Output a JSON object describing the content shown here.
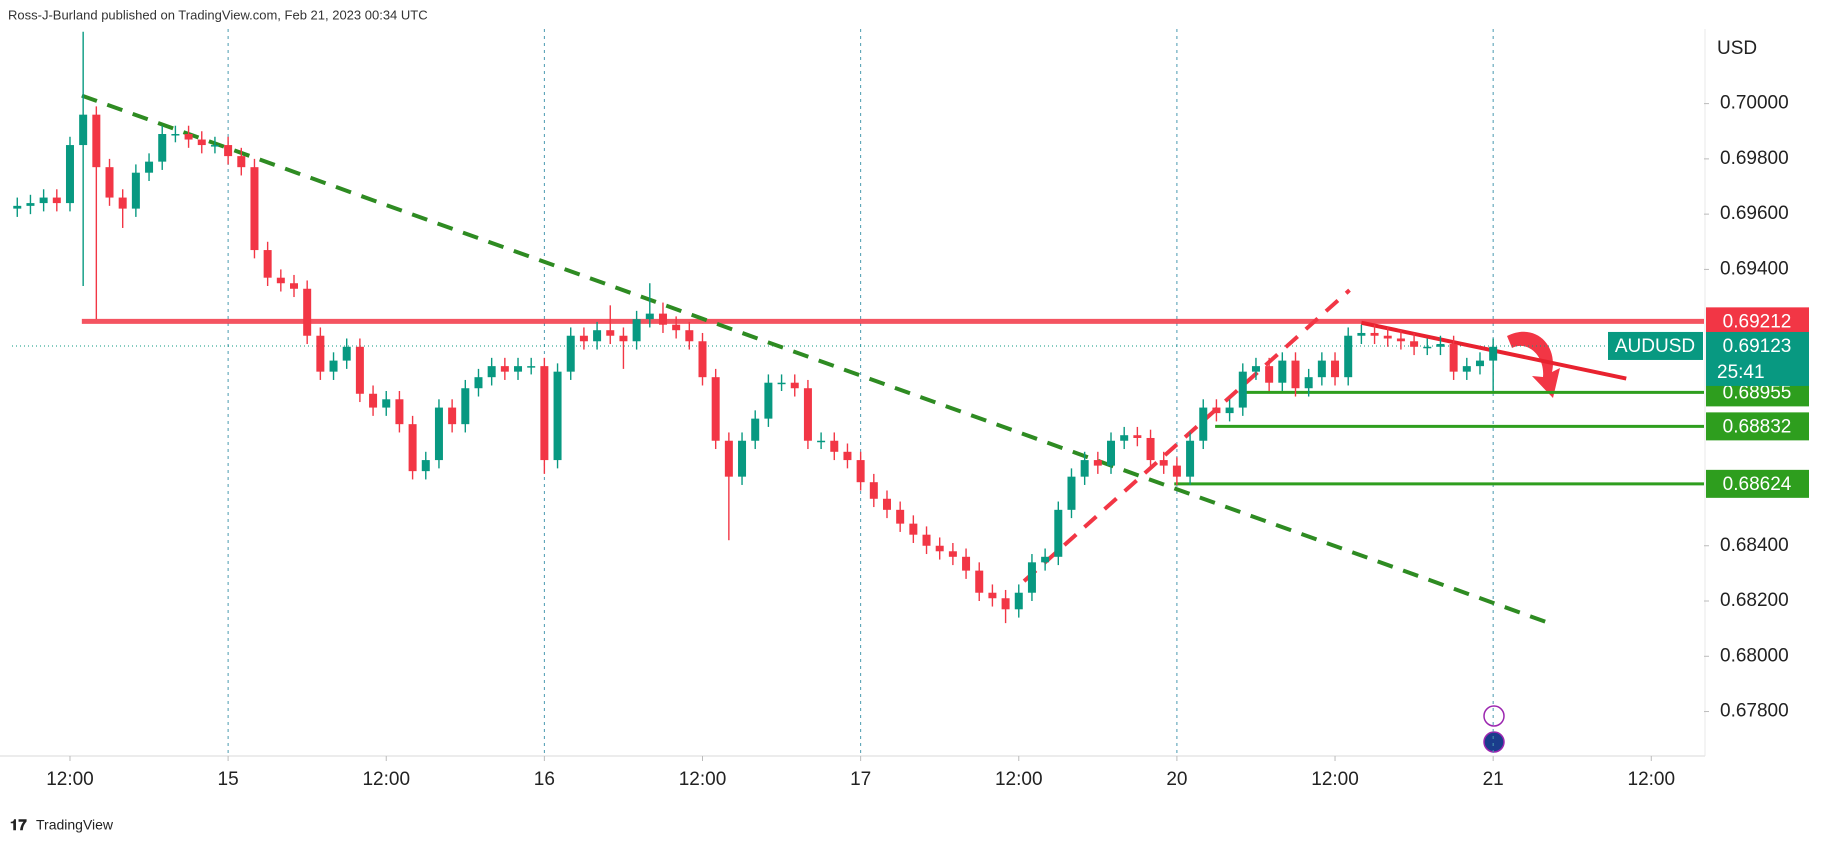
{
  "chart_data": {
    "type": "candlestick",
    "source": "Ross-J-Burland published on TradingView.com, Feb 21, 2023 00:34 UTC",
    "currency": "USD",
    "brand": "TradingView",
    "up_color": "#089981",
    "down_color": "#f23645",
    "open": [
      0.6962,
      0.6963,
      0.6964,
      0.6966,
      0.6964,
      0.6985,
      0.6996,
      0.6977,
      0.6966,
      0.6962,
      0.6975,
      0.6979,
      0.6989,
      0.6989,
      0.6987,
      0.6985,
      0.6985,
      0.6981,
      0.6977,
      0.6947,
      0.6937,
      0.6935,
      0.6933,
      0.6916,
      0.6903,
      0.6907,
      0.6912,
      0.6895,
      0.689,
      0.6893,
      0.6884,
      0.6867,
      0.6871,
      0.689,
      0.6884,
      0.6897,
      0.6901,
      0.6905,
      0.6903,
      0.6905,
      0.6905,
      0.6871,
      0.6903,
      0.6916,
      0.6914,
      0.6918,
      0.6916,
      0.6914,
      0.6922,
      0.6924,
      0.692,
      0.6918,
      0.6914,
      0.6901,
      0.6878,
      0.6865,
      0.6878,
      0.6886,
      0.6899,
      0.6899,
      0.6897,
      0.6878,
      0.6878,
      0.6874,
      0.6871,
      0.6863,
      0.6857,
      0.6853,
      0.6848,
      0.6844,
      0.684,
      0.6838,
      0.6836,
      0.6831,
      0.6823,
      0.6821,
      0.6817,
      0.6823,
      0.6834,
      0.6836,
      0.6853,
      0.6865,
      0.6871,
      0.6869,
      0.6878,
      0.688,
      0.6879,
      0.6871,
      0.6869,
      0.6865,
      0.6878,
      0.689,
      0.6888,
      0.689,
      0.6903,
      0.6905,
      0.6899,
      0.6907,
      0.6897,
      0.6901,
      0.6907,
      0.6901,
      0.6916,
      0.6917,
      0.6916,
      0.6915,
      0.6914,
      0.6912,
      0.6912,
      0.6913,
      0.6903,
      0.6905,
      0.6907
    ],
    "high": [
      0.6966,
      0.6967,
      0.6969,
      0.6969,
      0.6988,
      0.7026,
      0.6999,
      0.698,
      0.6969,
      0.6978,
      0.6982,
      0.6992,
      0.6992,
      0.6992,
      0.699,
      0.6988,
      0.6988,
      0.6984,
      0.698,
      0.695,
      0.694,
      0.6938,
      0.6936,
      0.6919,
      0.691,
      0.6915,
      0.6915,
      0.6898,
      0.6896,
      0.6896,
      0.6887,
      0.6874,
      0.6893,
      0.6893,
      0.69,
      0.6904,
      0.6908,
      0.6908,
      0.6908,
      0.6908,
      0.6908,
      0.6906,
      0.6919,
      0.6919,
      0.6921,
      0.6927,
      0.6919,
      0.6925,
      0.6935,
      0.6928,
      0.6923,
      0.6921,
      0.6917,
      0.6904,
      0.6881,
      0.6881,
      0.6889,
      0.6902,
      0.6902,
      0.6902,
      0.69,
      0.6881,
      0.6881,
      0.6877,
      0.6874,
      0.6866,
      0.686,
      0.6856,
      0.6851,
      0.6847,
      0.6843,
      0.6841,
      0.6839,
      0.6834,
      0.6826,
      0.6824,
      0.6826,
      0.6837,
      0.6839,
      0.6856,
      0.6868,
      0.6874,
      0.6874,
      0.6881,
      0.6883,
      0.6883,
      0.6882,
      0.6874,
      0.6872,
      0.6881,
      0.6893,
      0.6893,
      0.6893,
      0.6906,
      0.6908,
      0.6908,
      0.691,
      0.691,
      0.6904,
      0.691,
      0.691,
      0.6919,
      0.692,
      0.692,
      0.6919,
      0.6918,
      0.6917,
      0.6915,
      0.6916,
      0.6916,
      0.6908,
      0.691,
      0.6915
    ],
    "low": [
      0.6959,
      0.696,
      0.6961,
      0.6961,
      0.6961,
      0.6934,
      0.6922,
      0.6963,
      0.6955,
      0.6959,
      0.6972,
      0.6976,
      0.6986,
      0.6984,
      0.6982,
      0.6982,
      0.6978,
      0.6974,
      0.6944,
      0.6934,
      0.6932,
      0.693,
      0.6913,
      0.69,
      0.69,
      0.6904,
      0.6892,
      0.6887,
      0.6887,
      0.6881,
      0.6864,
      0.6864,
      0.6868,
      0.6881,
      0.6881,
      0.6894,
      0.6898,
      0.69,
      0.69,
      0.6902,
      0.6866,
      0.6868,
      0.69,
      0.6911,
      0.6911,
      0.6913,
      0.6904,
      0.6911,
      0.6919,
      0.6917,
      0.6915,
      0.6911,
      0.6898,
      0.6875,
      0.6842,
      0.6862,
      0.6875,
      0.6883,
      0.6896,
      0.6894,
      0.6875,
      0.6875,
      0.6871,
      0.6868,
      0.686,
      0.6854,
      0.685,
      0.6845,
      0.6841,
      0.6837,
      0.6835,
      0.6833,
      0.6828,
      0.682,
      0.6818,
      0.6812,
      0.6814,
      0.682,
      0.6831,
      0.6833,
      0.685,
      0.6862,
      0.6866,
      0.6866,
      0.6875,
      0.6876,
      0.6868,
      0.6866,
      0.6862,
      0.6862,
      0.6875,
      0.6885,
      0.6885,
      0.6887,
      0.69,
      0.6896,
      0.6896,
      0.6894,
      0.6894,
      0.6898,
      0.6898,
      0.6898,
      0.6913,
      0.6913,
      0.6912,
      0.6911,
      0.6909,
      0.6909,
      0.6909,
      0.69,
      0.69,
      0.6902,
      0.6896
    ],
    "close": [
      0.6963,
      0.6964,
      0.6966,
      0.6964,
      0.6985,
      0.6996,
      0.6977,
      0.6966,
      0.6962,
      0.6975,
      0.6979,
      0.6989,
      0.6989,
      0.6987,
      0.6985,
      0.6985,
      0.6981,
      0.6977,
      0.6947,
      0.6937,
      0.6935,
      0.6933,
      0.6916,
      0.6903,
      0.6907,
      0.6912,
      0.6895,
      0.689,
      0.6893,
      0.6884,
      0.6867,
      0.6871,
      0.689,
      0.6884,
      0.6897,
      0.6901,
      0.6905,
      0.6903,
      0.6905,
      0.6905,
      0.6871,
      0.6903,
      0.6916,
      0.6914,
      0.6918,
      0.6916,
      0.6914,
      0.6922,
      0.6924,
      0.692,
      0.6918,
      0.6914,
      0.6901,
      0.6878,
      0.6865,
      0.6878,
      0.6886,
      0.6899,
      0.6899,
      0.6897,
      0.6878,
      0.6878,
      0.6874,
      0.6871,
      0.6863,
      0.6857,
      0.6853,
      0.6848,
      0.6844,
      0.684,
      0.6838,
      0.6836,
      0.6831,
      0.6823,
      0.6821,
      0.6817,
      0.6823,
      0.6834,
      0.6836,
      0.6853,
      0.6865,
      0.6871,
      0.6869,
      0.6878,
      0.688,
      0.6879,
      0.6871,
      0.6869,
      0.6865,
      0.6878,
      0.689,
      0.6888,
      0.689,
      0.6903,
      0.6905,
      0.6899,
      0.6907,
      0.6897,
      0.6901,
      0.6907,
      0.6901,
      0.6916,
      0.6917,
      0.6916,
      0.6915,
      0.6914,
      0.6912,
      0.6912,
      0.6913,
      0.6903,
      0.6905,
      0.6907,
      0.6912
    ],
    "xlim": [
      -0.4,
      128
    ],
    "xticks": [
      {
        "value": 4,
        "label": "12:00"
      },
      {
        "value": 16,
        "label": "15"
      },
      {
        "value": 28,
        "label": "12:00"
      },
      {
        "value": 40,
        "label": "16"
      },
      {
        "value": 52,
        "label": "12:00"
      },
      {
        "value": 64,
        "label": "17"
      },
      {
        "value": 76,
        "label": "12:00"
      },
      {
        "value": 88,
        "label": "20"
      },
      {
        "value": 100,
        "label": "12:00"
      },
      {
        "value": 112,
        "label": "21"
      },
      {
        "value": 124,
        "label": "12:00"
      }
    ],
    "ylim": [
      0.6765,
      0.7027
    ],
    "yticks": [
      {
        "value": 0.678,
        "label": "0.67800"
      },
      {
        "value": 0.68,
        "label": "0.68000"
      },
      {
        "value": 0.682,
        "label": "0.68200"
      },
      {
        "value": 0.684,
        "label": "0.68400"
      },
      {
        "value": 0.694,
        "label": "0.69400"
      },
      {
        "value": 0.696,
        "label": "0.69600"
      },
      {
        "value": 0.698,
        "label": "0.69800"
      },
      {
        "value": 0.7,
        "label": "0.70000"
      }
    ],
    "levels": [
      {
        "value": 0.69212,
        "from": 4.9,
        "color": "#f23645"
      },
      {
        "value": 0.68955,
        "from": 92.7,
        "color": "#2e9e1e"
      },
      {
        "value": 0.68832,
        "from": 90.9,
        "color": "#2e9e1e"
      },
      {
        "value": 0.68624,
        "from": 87.8,
        "color": "#2e9e1e"
      }
    ],
    "last_price": {
      "symbol": "AUDUSD",
      "value": 0.69123,
      "countdown": "25:41",
      "color": "#089981"
    },
    "trendlines": [
      {
        "x": [
          4.9,
          116.5
        ],
        "y": [
          0.70029,
          0.68116
        ],
        "color": "#2e8b22",
        "dashed": true
      },
      {
        "x": [
          76.4,
          101.1
        ],
        "y": [
          0.68272,
          0.69325
        ],
        "color": "#f23645",
        "dashed": true
      },
      {
        "x": [
          102.0,
          122.1
        ],
        "y": [
          0.69207,
          0.69005
        ],
        "color": "#e8222f",
        "dashed": false
      }
    ]
  }
}
